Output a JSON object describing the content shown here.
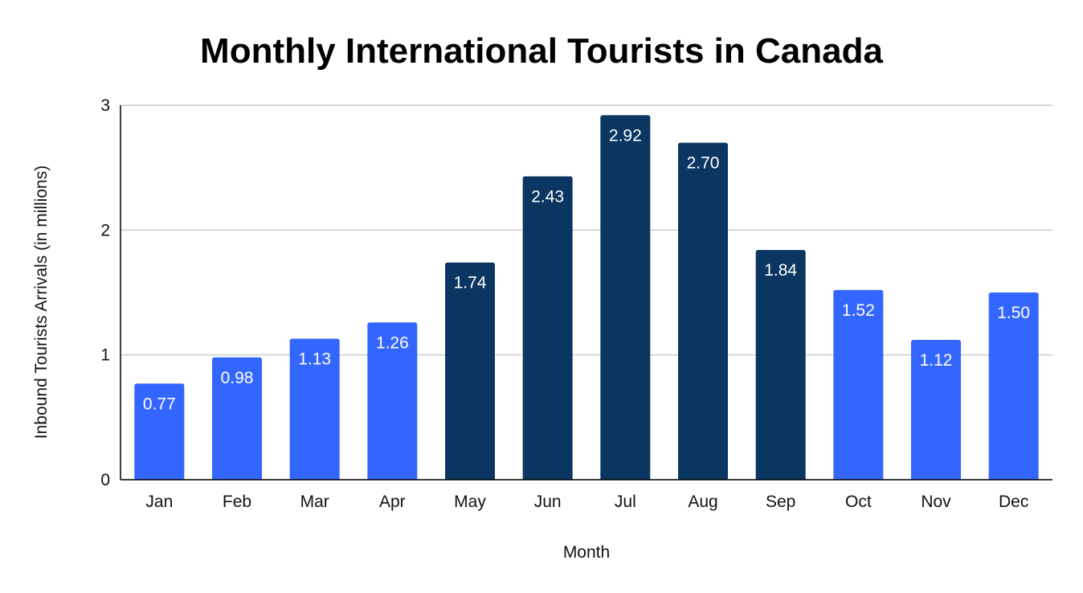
{
  "chart_data": {
    "type": "bar",
    "title": "Monthly International Tourists in Canada",
    "xlabel": "Month",
    "ylabel": "Inbound Tourists Arrivals (in millions)",
    "categories": [
      "Jan",
      "Feb",
      "Mar",
      "Apr",
      "May",
      "Jun",
      "Jul",
      "Aug",
      "Sep",
      "Oct",
      "Nov",
      "Dec"
    ],
    "values": [
      0.77,
      0.98,
      1.13,
      1.26,
      1.74,
      2.43,
      2.92,
      2.7,
      1.84,
      1.52,
      1.12,
      1.5
    ],
    "value_labels": [
      "0.77",
      "0.98",
      "1.13",
      "1.26",
      "1.74",
      "2.43",
      "2.92",
      "2.70",
      "1.84",
      "1.52",
      "1.12",
      "1.50"
    ],
    "ylim": [
      0,
      3
    ],
    "yticks": [
      "0",
      "1",
      "2",
      "3"
    ],
    "grid": true,
    "legend": "none",
    "colors": {
      "peak_season": "#0a3661",
      "off_season": "#3366ff",
      "gridline": "#cccccc",
      "axis": "#000000"
    },
    "bar_color_groups": [
      "off_season",
      "off_season",
      "off_season",
      "off_season",
      "peak_season",
      "peak_season",
      "peak_season",
      "peak_season",
      "peak_season",
      "off_season",
      "off_season",
      "off_season"
    ]
  }
}
